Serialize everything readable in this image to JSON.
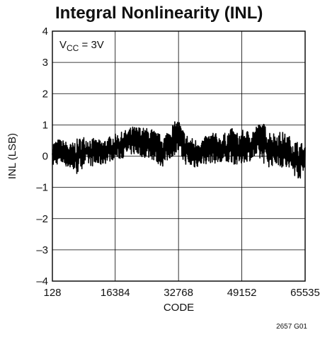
{
  "chart_data": {
    "type": "line",
    "title": "Integral Nonlinearity (INL)",
    "xlabel": "CODE",
    "ylabel": "INL (LSB)",
    "xlim": [
      128,
      65535
    ],
    "ylim": [
      -4,
      4
    ],
    "x_ticks": [
      128,
      16384,
      32768,
      49152,
      65535
    ],
    "x_tick_labels": [
      "128",
      "16384",
      "32768",
      "49152",
      "65535"
    ],
    "y_ticks": [
      -4,
      -3,
      -2,
      -1,
      0,
      1,
      2,
      3,
      4
    ],
    "y_tick_labels": [
      "–4",
      "–3",
      "–2",
      "–1",
      "0",
      "1",
      "2",
      "3",
      "4"
    ],
    "grid": true,
    "annotation": {
      "prefix": "V",
      "subscript": "CC",
      "suffix": " = 3V"
    },
    "figure_id": "2657 G01",
    "line_color": "#000000",
    "series": [
      {
        "x": [
          128,
          1700,
          3300,
          4900,
          6500,
          8100,
          9700,
          11300,
          12900,
          14500,
          16100,
          17700,
          19300,
          20900,
          22500,
          24100,
          25700,
          27300,
          28900,
          30500,
          31800,
          32768,
          33700,
          35300,
          36900,
          38500,
          40100,
          41700,
          43300,
          44900,
          46500,
          48100,
          49700,
          51300,
          52900,
          54500,
          56100,
          57700,
          59300,
          60900,
          62500,
          64100,
          65535
        ],
        "y_max": [
          0.45,
          0.55,
          0.5,
          0.4,
          0.55,
          0.65,
          0.6,
          0.55,
          0.5,
          0.6,
          0.7,
          0.75,
          0.85,
          0.95,
          0.95,
          0.9,
          0.9,
          0.75,
          0.65,
          0.95,
          1.1,
          1.2,
          0.9,
          0.65,
          0.55,
          0.55,
          0.65,
          0.8,
          0.65,
          0.75,
          0.9,
          0.75,
          0.85,
          0.8,
          1.0,
          1.1,
          0.85,
          0.75,
          0.8,
          0.7,
          0.55,
          0.45,
          0.4
        ],
        "y_min": [
          -0.35,
          -0.25,
          -0.3,
          -0.45,
          -0.6,
          -0.35,
          -0.3,
          -0.35,
          -0.3,
          -0.2,
          -0.1,
          -0.1,
          0.0,
          0.05,
          0.0,
          -0.05,
          -0.1,
          -0.25,
          -0.35,
          -0.1,
          0.05,
          0.05,
          -0.15,
          -0.35,
          -0.4,
          -0.3,
          -0.25,
          -0.2,
          -0.3,
          -0.3,
          -0.2,
          -0.35,
          -0.2,
          -0.15,
          -0.1,
          -0.2,
          -0.35,
          -0.3,
          -0.35,
          -0.5,
          -0.6,
          -0.75,
          -0.55
        ]
      }
    ]
  }
}
